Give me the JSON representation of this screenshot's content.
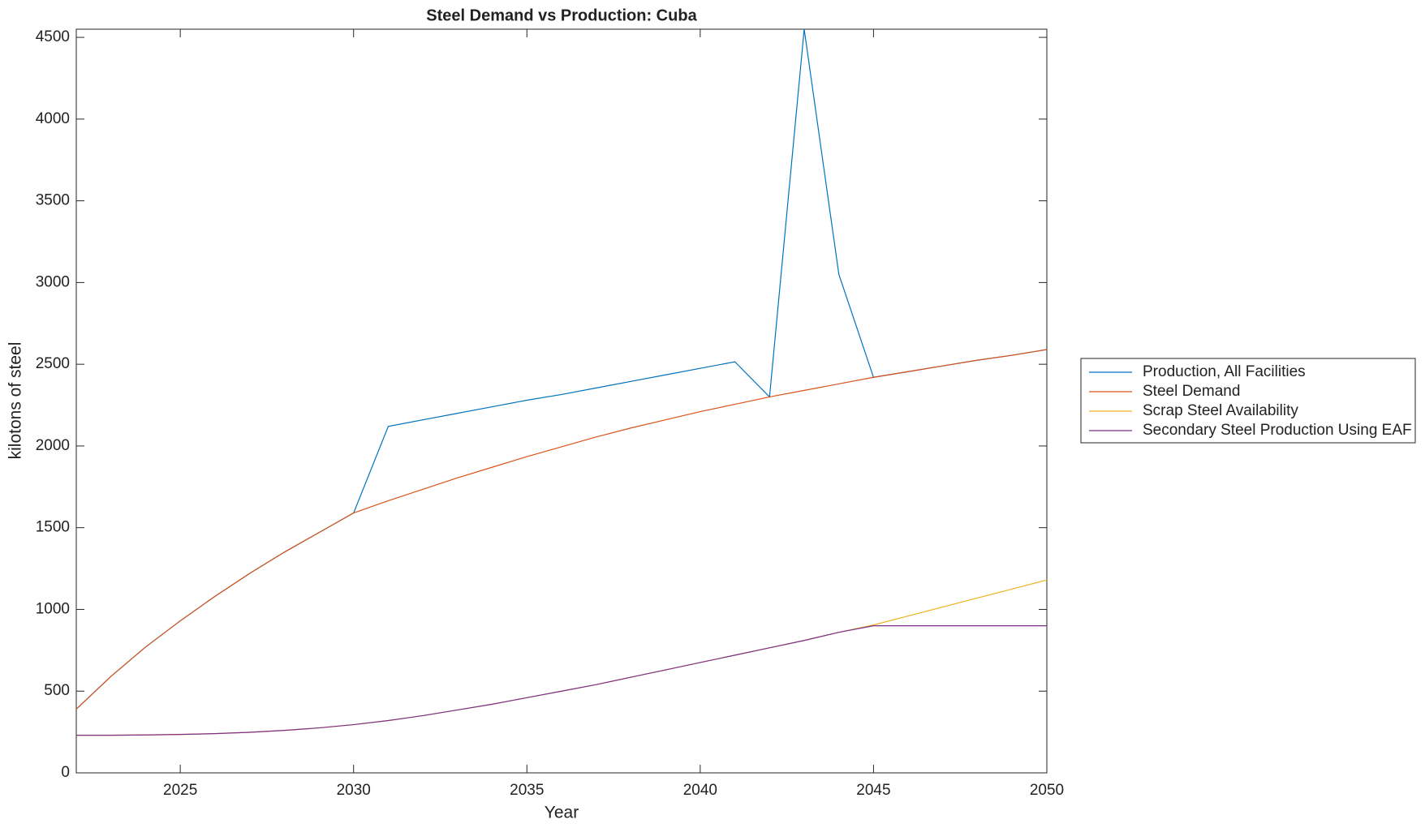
{
  "chart_data": {
    "type": "line",
    "title": "Steel Demand vs Production: Cuba",
    "xlabel": "Year",
    "ylabel": "kilotons of steel",
    "x": [
      2022,
      2023,
      2024,
      2025,
      2026,
      2027,
      2028,
      2029,
      2030,
      2031,
      2032,
      2033,
      2034,
      2035,
      2036,
      2037,
      2038,
      2039,
      2040,
      2041,
      2042,
      2043,
      2044,
      2045,
      2046,
      2047,
      2048,
      2049,
      2050
    ],
    "series": [
      {
        "name": "Production, All Facilities",
        "color": "#0072BD",
        "values": [
          390,
          590,
          770,
          930,
          1080,
          1220,
          1350,
          1470,
          1590,
          2120,
          2160,
          2200,
          2240,
          2280,
          2315,
          2355,
          2395,
          2435,
          2475,
          2515,
          2300,
          4550,
          3050,
          2420,
          2455,
          2490,
          2525,
          2555,
          2590
        ]
      },
      {
        "name": "Steel Demand",
        "color": "#D95319",
        "values": [
          390,
          590,
          770,
          930,
          1080,
          1220,
          1350,
          1470,
          1590,
          1665,
          1735,
          1805,
          1870,
          1935,
          1995,
          2055,
          2110,
          2160,
          2210,
          2255,
          2300,
          2340,
          2380,
          2420,
          2455,
          2490,
          2525,
          2555,
          2590
        ]
      },
      {
        "name": "Scrap Steel Availability",
        "color": "#EDB120",
        "values": [
          230,
          230,
          232,
          235,
          240,
          248,
          260,
          275,
          295,
          320,
          350,
          385,
          420,
          460,
          500,
          540,
          585,
          630,
          675,
          720,
          765,
          810,
          860,
          905,
          960,
          1015,
          1070,
          1125,
          1180
        ]
      },
      {
        "name": "Secondary Steel Production Using EAF",
        "color": "#7E2F8E",
        "values": [
          230,
          230,
          232,
          235,
          240,
          248,
          260,
          275,
          295,
          320,
          350,
          385,
          420,
          460,
          500,
          540,
          585,
          630,
          675,
          720,
          765,
          810,
          860,
          900,
          900,
          900,
          900,
          900,
          900
        ]
      }
    ],
    "xlim": [
      2022,
      2050
    ],
    "xticks": [
      2025,
      2030,
      2035,
      2040,
      2045,
      2050
    ],
    "ylim": [
      0,
      4550
    ],
    "yticks": [
      0,
      500,
      1000,
      1500,
      2000,
      2500,
      3000,
      3500,
      4000,
      4500
    ],
    "legend": "outside-right"
  }
}
